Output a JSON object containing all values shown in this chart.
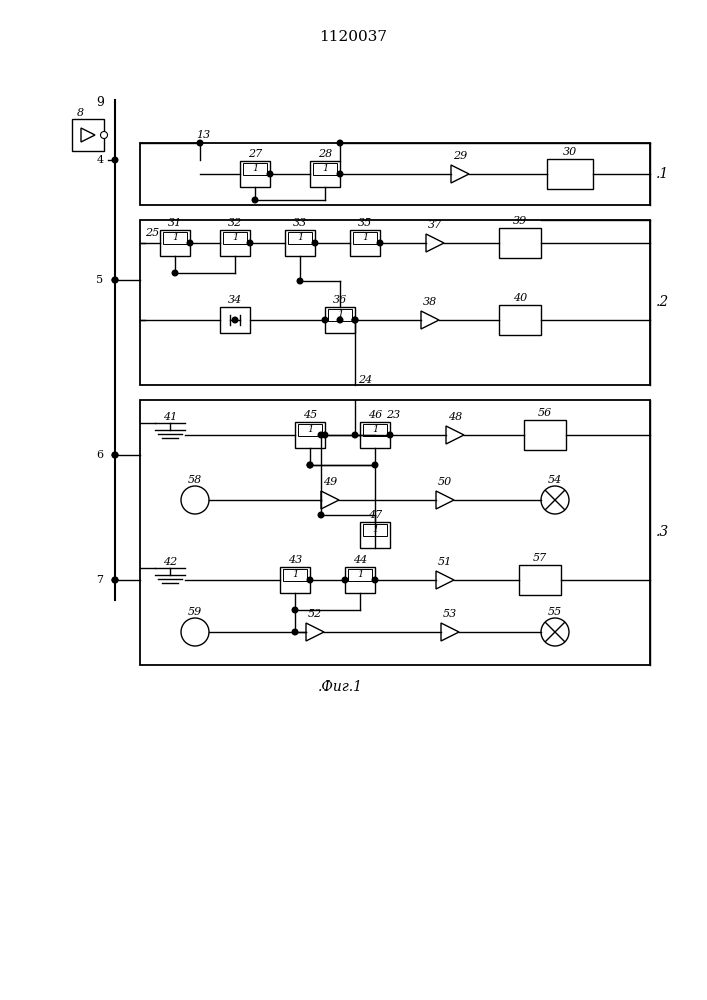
{
  "title": "1120037",
  "caption": ".Фиг.1",
  "bg_color": "#ffffff",
  "line_color": "#000000",
  "fig_width": 7.07,
  "fig_height": 10.0,
  "dpi": 100
}
